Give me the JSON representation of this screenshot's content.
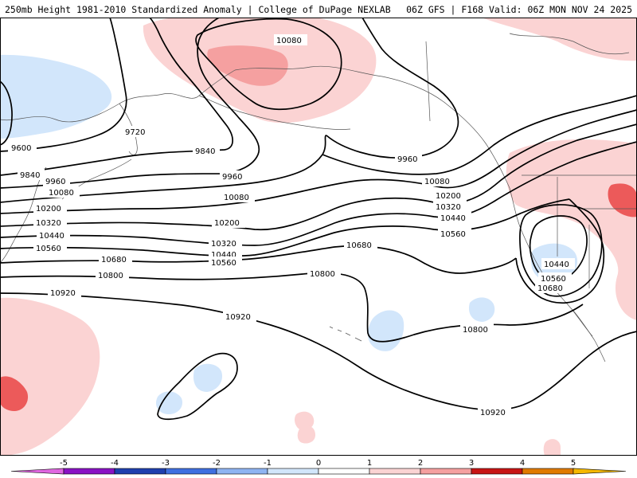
{
  "header": {
    "title_left": "250mb Height 1981-2010 Standardized Anomaly | College of DuPage NEXLAB",
    "title_right": "06Z GFS | F168 Valid: 06Z MON NOV 24 2025"
  },
  "contours": [
    {
      "value": 9600,
      "label": "9600"
    },
    {
      "value": 9720,
      "label": "9720"
    },
    {
      "value": 9840,
      "label": "9840"
    },
    {
      "value": 9960,
      "label": "9960"
    },
    {
      "value": 10080,
      "label": "10080"
    },
    {
      "value": 10200,
      "label": "10200"
    },
    {
      "value": 10320,
      "label": "10320"
    },
    {
      "value": 10440,
      "label": "10440"
    },
    {
      "value": 10560,
      "label": "10560"
    },
    {
      "value": 10680,
      "label": "10680"
    },
    {
      "value": 10800,
      "label": "10800"
    },
    {
      "value": 10920,
      "label": "10920"
    }
  ],
  "colorbar": {
    "ticks": [
      "-5",
      "-4",
      "-3",
      "-2",
      "-1",
      "0",
      "1",
      "2",
      "3",
      "4",
      "5"
    ],
    "colors": {
      "neg5": "#e066e0",
      "neg4": "#8a12c4",
      "neg3": "#1f3fae",
      "neg2": "#3f6fe0",
      "neg1": "#8fb4f2",
      "neg0": "#d2e6fb",
      "pos0": "#fbd3d3",
      "pos1": "#f5a0a0",
      "pos2": "#ec5a5a",
      "pos3": "#c81414",
      "pos4": "#e07a00",
      "pos5": "#f5b800"
    }
  }
}
